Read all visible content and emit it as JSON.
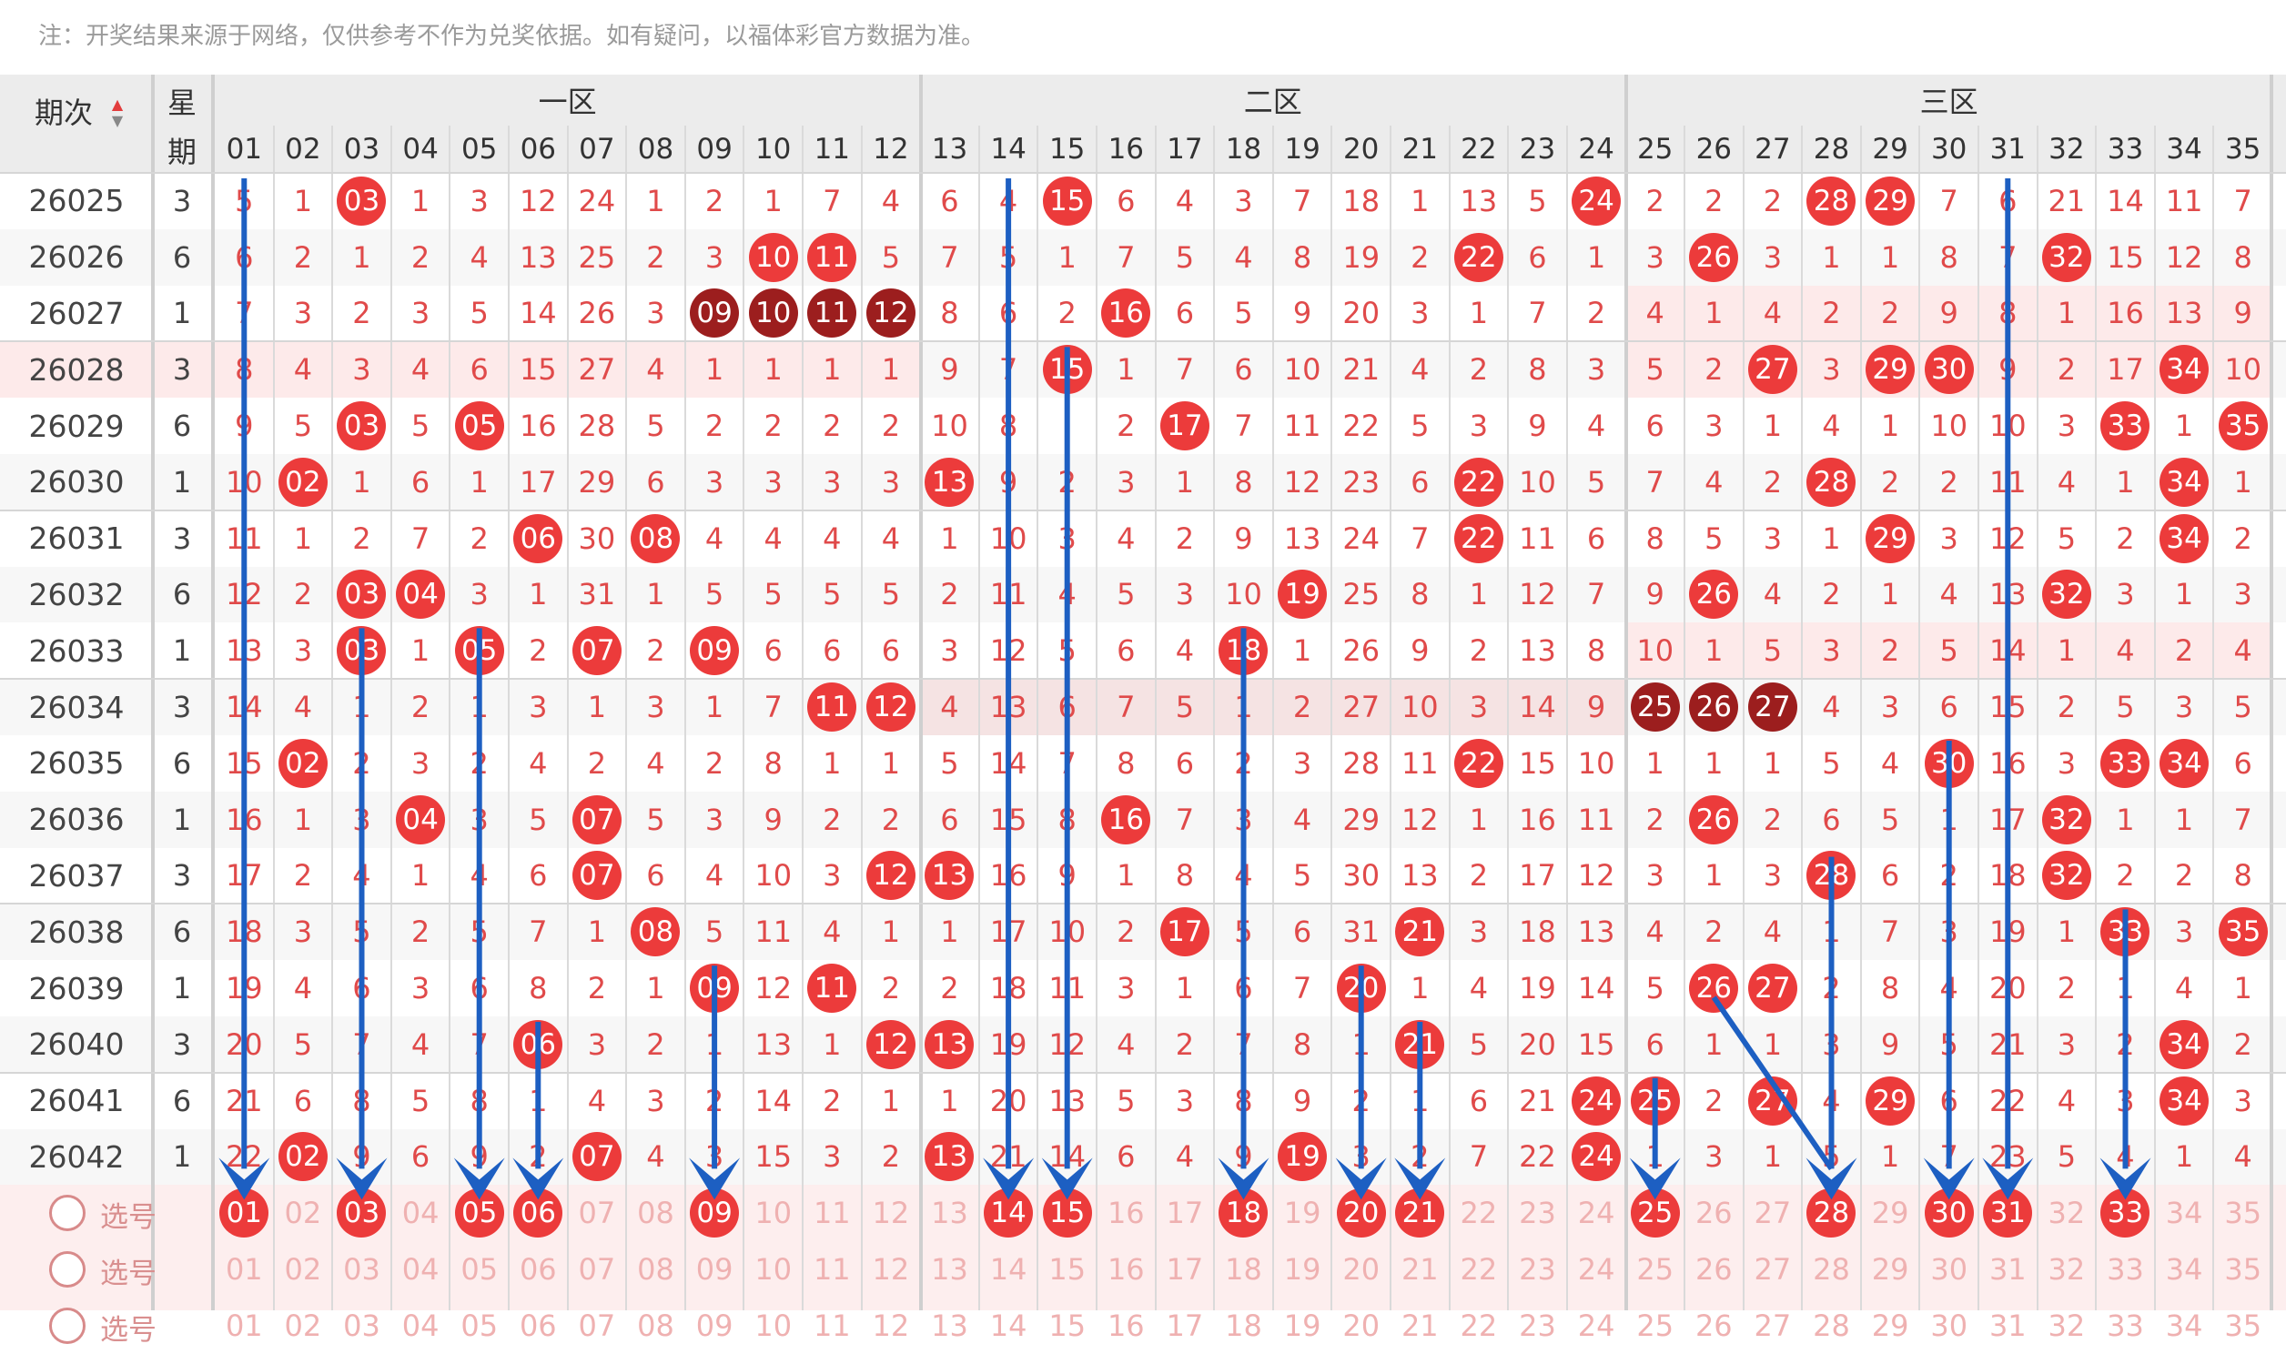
{
  "note": "注：开奖结果来源于网络，仅供参考不作为兑奖依据。如有疑问，以福体彩官方数据为准。",
  "header": {
    "period_label": "期次",
    "sort_arrows": "▲▼",
    "weekday_label_top": "星",
    "weekday_label_bottom": "期",
    "zone_labels": [
      "一区",
      "二区",
      "三区"
    ],
    "numbers": [
      "01",
      "02",
      "03",
      "04",
      "05",
      "06",
      "07",
      "08",
      "09",
      "10",
      "11",
      "12",
      "13",
      "14",
      "15",
      "16",
      "17",
      "18",
      "19",
      "20",
      "21",
      "22",
      "23",
      "24",
      "25",
      "26",
      "27",
      "28",
      "29",
      "30",
      "31",
      "32",
      "33",
      "34",
      "35"
    ]
  },
  "rows": [
    {
      "period": "26025",
      "weekday": "3",
      "cells": [
        "5",
        "1",
        "03",
        "1",
        "3",
        "12",
        "24",
        "1",
        "2",
        "1",
        "7",
        "4",
        "6",
        "4",
        "15",
        "6",
        "4",
        "3",
        "7",
        "18",
        "1",
        "13",
        "5",
        "24",
        "2",
        "2",
        "2",
        "28",
        "29",
        "7",
        "6",
        "21",
        "14",
        "11",
        "7"
      ],
      "hits": [
        3,
        15,
        24,
        28,
        29
      ]
    },
    {
      "period": "26026",
      "weekday": "6",
      "cells": [
        "6",
        "2",
        "1",
        "2",
        "4",
        "13",
        "25",
        "2",
        "3",
        "10",
        "11",
        "5",
        "7",
        "5",
        "1",
        "7",
        "5",
        "4",
        "8",
        "19",
        "2",
        "22",
        "6",
        "1",
        "3",
        "26",
        "3",
        "1",
        "1",
        "8",
        "7",
        "32",
        "15",
        "12",
        "8"
      ],
      "hits": [
        10,
        11,
        22,
        26,
        32
      ]
    },
    {
      "period": "26027",
      "weekday": "1",
      "cells": [
        "7",
        "3",
        "2",
        "3",
        "5",
        "14",
        "26",
        "3",
        "09",
        "10",
        "11",
        "12",
        "8",
        "6",
        "2",
        "16",
        "6",
        "5",
        "9",
        "20",
        "3",
        "1",
        "7",
        "2",
        "4",
        "1",
        "4",
        "2",
        "2",
        "9",
        "8",
        "1",
        "16",
        "13",
        "9"
      ],
      "hits": [
        9,
        10,
        11,
        12,
        16
      ],
      "dark": [
        9,
        10,
        11,
        12
      ]
    },
    {
      "period": "26028",
      "weekday": "3",
      "cells": [
        "8",
        "4",
        "3",
        "4",
        "6",
        "15",
        "27",
        "4",
        "1",
        "1",
        "1",
        "1",
        "9",
        "7",
        "15",
        "1",
        "7",
        "6",
        "10",
        "21",
        "4",
        "2",
        "8",
        "3",
        "5",
        "2",
        "27",
        "3",
        "29",
        "30",
        "9",
        "2",
        "17",
        "34",
        "10"
      ],
      "hits": [
        15,
        27,
        29,
        30,
        34
      ]
    },
    {
      "period": "26029",
      "weekday": "6",
      "cells": [
        "9",
        "5",
        "03",
        "5",
        "05",
        "16",
        "28",
        "5",
        "2",
        "2",
        "2",
        "2",
        "10",
        "8",
        "",
        "2",
        "17",
        "7",
        "11",
        "22",
        "5",
        "3",
        "9",
        "4",
        "6",
        "3",
        "1",
        "4",
        "1",
        "10",
        "10",
        "3",
        "33",
        "1",
        "35"
      ],
      "hits": [
        3,
        5,
        17,
        33,
        35
      ]
    },
    {
      "period": "26030",
      "weekday": "1",
      "cells": [
        "10",
        "02",
        "1",
        "6",
        "1",
        "17",
        "29",
        "6",
        "3",
        "3",
        "3",
        "3",
        "13",
        "9",
        "2",
        "3",
        "1",
        "8",
        "12",
        "23",
        "6",
        "22",
        "10",
        "5",
        "7",
        "4",
        "2",
        "28",
        "2",
        "2",
        "11",
        "4",
        "1",
        "34",
        "1"
      ],
      "hits": [
        2,
        13,
        22,
        28,
        34
      ]
    },
    {
      "period": "26031",
      "weekday": "3",
      "cells": [
        "11",
        "1",
        "2",
        "7",
        "2",
        "06",
        "30",
        "08",
        "4",
        "4",
        "4",
        "4",
        "1",
        "10",
        "3",
        "4",
        "2",
        "9",
        "13",
        "24",
        "7",
        "22",
        "11",
        "6",
        "8",
        "5",
        "3",
        "1",
        "29",
        "3",
        "12",
        "5",
        "2",
        "34",
        "2"
      ],
      "hits": [
        6,
        8,
        22,
        29,
        34
      ]
    },
    {
      "period": "26032",
      "weekday": "6",
      "cells": [
        "12",
        "2",
        "03",
        "04",
        "3",
        "1",
        "31",
        "1",
        "5",
        "5",
        "5",
        "5",
        "2",
        "11",
        "4",
        "5",
        "3",
        "10",
        "19",
        "25",
        "8",
        "1",
        "12",
        "7",
        "9",
        "26",
        "4",
        "2",
        "1",
        "4",
        "13",
        "32",
        "3",
        "1",
        "3"
      ],
      "hits": [
        3,
        4,
        19,
        26,
        32
      ]
    },
    {
      "period": "26033",
      "weekday": "1",
      "cells": [
        "13",
        "3",
        "03",
        "1",
        "05",
        "2",
        "07",
        "2",
        "09",
        "6",
        "6",
        "6",
        "3",
        "12",
        "5",
        "6",
        "4",
        "18",
        "1",
        "26",
        "9",
        "2",
        "13",
        "8",
        "10",
        "1",
        "5",
        "3",
        "2",
        "5",
        "14",
        "1",
        "4",
        "2",
        "4"
      ],
      "hits": [
        3,
        5,
        7,
        9,
        18
      ]
    },
    {
      "period": "26034",
      "weekday": "3",
      "cells": [
        "14",
        "4",
        "1",
        "2",
        "1",
        "3",
        "1",
        "3",
        "1",
        "7",
        "11",
        "12",
        "4",
        "13",
        "6",
        "7",
        "5",
        "1",
        "2",
        "27",
        "10",
        "3",
        "14",
        "9",
        "25",
        "26",
        "27",
        "4",
        "3",
        "6",
        "15",
        "2",
        "5",
        "3",
        "5"
      ],
      "hits": [
        11,
        12,
        25,
        26,
        27
      ],
      "dark": [
        25,
        26,
        27
      ]
    },
    {
      "period": "26035",
      "weekday": "6",
      "cells": [
        "15",
        "02",
        "2",
        "3",
        "2",
        "4",
        "2",
        "4",
        "2",
        "8",
        "1",
        "1",
        "5",
        "14",
        "7",
        "8",
        "6",
        "2",
        "3",
        "28",
        "11",
        "22",
        "15",
        "10",
        "1",
        "1",
        "1",
        "5",
        "4",
        "30",
        "16",
        "3",
        "33",
        "34",
        "6"
      ],
      "hits": [
        2,
        22,
        30,
        33,
        34
      ]
    },
    {
      "period": "26036",
      "weekday": "1",
      "cells": [
        "16",
        "1",
        "3",
        "04",
        "3",
        "5",
        "07",
        "5",
        "3",
        "9",
        "2",
        "2",
        "6",
        "15",
        "8",
        "16",
        "7",
        "3",
        "4",
        "29",
        "12",
        "1",
        "16",
        "11",
        "2",
        "26",
        "2",
        "6",
        "5",
        "1",
        "17",
        "32",
        "1",
        "1",
        "7"
      ],
      "hits": [
        4,
        7,
        16,
        26,
        32
      ]
    },
    {
      "period": "26037",
      "weekday": "3",
      "cells": [
        "17",
        "2",
        "4",
        "1",
        "4",
        "6",
        "07",
        "6",
        "4",
        "10",
        "3",
        "12",
        "13",
        "16",
        "9",
        "1",
        "8",
        "4",
        "5",
        "30",
        "13",
        "2",
        "17",
        "12",
        "3",
        "1",
        "3",
        "28",
        "6",
        "2",
        "18",
        "32",
        "2",
        "2",
        "8"
      ],
      "hits": [
        7,
        12,
        13,
        28,
        32
      ]
    },
    {
      "period": "26038",
      "weekday": "6",
      "cells": [
        "18",
        "3",
        "5",
        "2",
        "5",
        "7",
        "1",
        "08",
        "5",
        "11",
        "4",
        "1",
        "1",
        "17",
        "10",
        "2",
        "17",
        "5",
        "6",
        "31",
        "21",
        "3",
        "18",
        "13",
        "4",
        "2",
        "4",
        "1",
        "7",
        "3",
        "19",
        "1",
        "33",
        "3",
        "35"
      ],
      "hits": [
        8,
        17,
        21,
        33,
        35
      ]
    },
    {
      "period": "26039",
      "weekday": "1",
      "cells": [
        "19",
        "4",
        "6",
        "3",
        "6",
        "8",
        "2",
        "1",
        "09",
        "12",
        "11",
        "2",
        "2",
        "18",
        "11",
        "3",
        "1",
        "6",
        "7",
        "20",
        "1",
        "4",
        "19",
        "14",
        "5",
        "26",
        "27",
        "2",
        "8",
        "4",
        "20",
        "2",
        "1",
        "4",
        "1"
      ],
      "hits": [
        9,
        11,
        20,
        26,
        27
      ]
    },
    {
      "period": "26040",
      "weekday": "3",
      "cells": [
        "20",
        "5",
        "7",
        "4",
        "7",
        "06",
        "3",
        "2",
        "1",
        "13",
        "1",
        "12",
        "13",
        "19",
        "12",
        "4",
        "2",
        "7",
        "8",
        "1",
        "21",
        "5",
        "20",
        "15",
        "6",
        "1",
        "1",
        "3",
        "9",
        "5",
        "21",
        "3",
        "2",
        "34",
        "2"
      ],
      "hits": [
        6,
        12,
        13,
        21,
        34
      ]
    },
    {
      "period": "26041",
      "weekday": "6",
      "cells": [
        "21",
        "6",
        "8",
        "5",
        "8",
        "1",
        "4",
        "3",
        "2",
        "14",
        "2",
        "1",
        "1",
        "20",
        "13",
        "5",
        "3",
        "8",
        "9",
        "2",
        "1",
        "6",
        "21",
        "24",
        "25",
        "2",
        "27",
        "4",
        "29",
        "6",
        "22",
        "4",
        "3",
        "34",
        "3"
      ],
      "hits": [
        24,
        25,
        27,
        29,
        34
      ]
    },
    {
      "period": "26042",
      "weekday": "1",
      "cells": [
        "22",
        "02",
        "9",
        "6",
        "9",
        "2",
        "07",
        "4",
        "3",
        "15",
        "3",
        "2",
        "13",
        "21",
        "14",
        "6",
        "4",
        "9",
        "19",
        "3",
        "2",
        "7",
        "22",
        "24",
        "1",
        "3",
        "1",
        "5",
        "1",
        "7",
        "23",
        "5",
        "4",
        "1",
        "4"
      ],
      "hits": [
        2,
        7,
        13,
        19,
        24
      ]
    }
  ],
  "select_rows": [
    {
      "label": "选号",
      "picked": [
        1,
        3,
        5,
        6,
        9,
        14,
        15,
        18,
        20,
        21,
        25,
        28,
        30,
        31,
        33
      ]
    },
    {
      "label": "选号",
      "picked": []
    },
    {
      "label": "选号",
      "picked": []
    }
  ],
  "arrow_targets": [
    1,
    3,
    5,
    6,
    9,
    14,
    15,
    18,
    20,
    21,
    25,
    28,
    30,
    31,
    33
  ],
  "colors": {
    "hit": "#ec3b3b",
    "hit_dark": "#9c1e1e",
    "arrow": "#1d5fc2",
    "miss_text": "#e04a4a",
    "header_bg": "#ececec"
  }
}
